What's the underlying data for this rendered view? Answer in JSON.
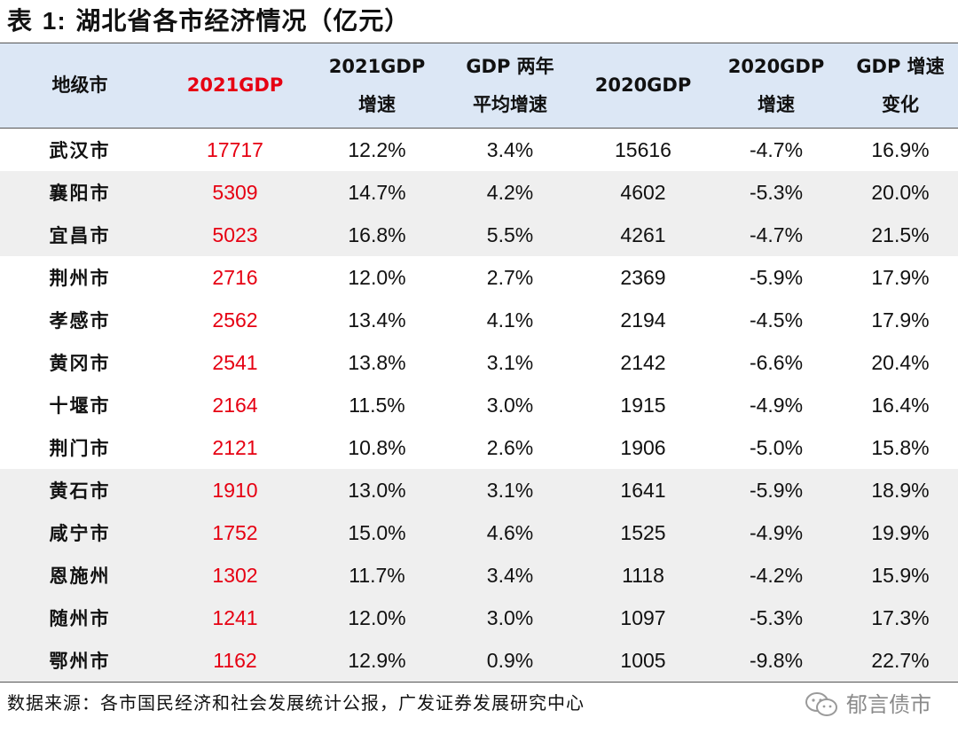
{
  "title": {
    "prefix": "表 ",
    "number": "1:",
    "text": " 湖北省各市经济情况（亿元）"
  },
  "headers": {
    "city": "地级市",
    "gdp2021": "2021GDP",
    "growth2021_l1": "2021GDP",
    "growth2021_l2": "增速",
    "avg2y_l1": "GDP 两年",
    "avg2y_l2": "平均增速",
    "gdp2020": "2020GDP",
    "growth2020_l1": "2020GDP",
    "growth2020_l2": "增速",
    "change_l1": "GDP 增速",
    "change_l2": "变化"
  },
  "rows": [
    {
      "city": "武汉市",
      "gdp2021": "17717",
      "growth2021": "12.2%",
      "avg2y": "3.4%",
      "gdp2020": "15616",
      "growth2020": "-4.7%",
      "change": "16.9%"
    },
    {
      "city": "襄阳市",
      "gdp2021": "5309",
      "growth2021": "14.7%",
      "avg2y": "4.2%",
      "gdp2020": "4602",
      "growth2020": "-5.3%",
      "change": "20.0%"
    },
    {
      "city": "宜昌市",
      "gdp2021": "5023",
      "growth2021": "16.8%",
      "avg2y": "5.5%",
      "gdp2020": "4261",
      "growth2020": "-4.7%",
      "change": "21.5%"
    },
    {
      "city": "荆州市",
      "gdp2021": "2716",
      "growth2021": "12.0%",
      "avg2y": "2.7%",
      "gdp2020": "2369",
      "growth2020": "-5.9%",
      "change": "17.9%"
    },
    {
      "city": "孝感市",
      "gdp2021": "2562",
      "growth2021": "13.4%",
      "avg2y": "4.1%",
      "gdp2020": "2194",
      "growth2020": "-4.5%",
      "change": "17.9%"
    },
    {
      "city": "黄冈市",
      "gdp2021": "2541",
      "growth2021": "13.8%",
      "avg2y": "3.1%",
      "gdp2020": "2142",
      "growth2020": "-6.6%",
      "change": "20.4%"
    },
    {
      "city": "十堰市",
      "gdp2021": "2164",
      "growth2021": "11.5%",
      "avg2y": "3.0%",
      "gdp2020": "1915",
      "growth2020": "-4.9%",
      "change": "16.4%"
    },
    {
      "city": "荆门市",
      "gdp2021": "2121",
      "growth2021": "10.8%",
      "avg2y": "2.6%",
      "gdp2020": "1906",
      "growth2020": "-5.0%",
      "change": "15.8%"
    },
    {
      "city": "黄石市",
      "gdp2021": "1910",
      "growth2021": "13.0%",
      "avg2y": "3.1%",
      "gdp2020": "1641",
      "growth2020": "-5.9%",
      "change": "18.9%"
    },
    {
      "city": "咸宁市",
      "gdp2021": "1752",
      "growth2021": "15.0%",
      "avg2y": "4.6%",
      "gdp2020": "1525",
      "growth2020": "-4.9%",
      "change": "19.9%"
    },
    {
      "city": "恩施州",
      "gdp2021": "1302",
      "growth2021": "11.7%",
      "avg2y": "3.4%",
      "gdp2020": "1118",
      "growth2020": "-4.2%",
      "change": "15.9%"
    },
    {
      "city": "随州市",
      "gdp2021": "1241",
      "growth2021": "12.0%",
      "avg2y": "3.0%",
      "gdp2020": "1097",
      "growth2020": "-5.3%",
      "change": "17.3%"
    },
    {
      "city": "鄂州市",
      "gdp2021": "1162",
      "growth2021": "12.9%",
      "avg2y": "0.9%",
      "gdp2020": "1005",
      "growth2020": "-9.8%",
      "change": "22.7%"
    }
  ],
  "footer": {
    "source": "数据来源：各市国民经济和社会发展统计公报，广发证券发展研究中心"
  },
  "watermark": {
    "icon": "wechat-icon",
    "text": "郁言债市"
  },
  "colors": {
    "accent_red": "#e60012",
    "header_bg": "#dce7f5",
    "shade_row_bg": "#efefef"
  }
}
